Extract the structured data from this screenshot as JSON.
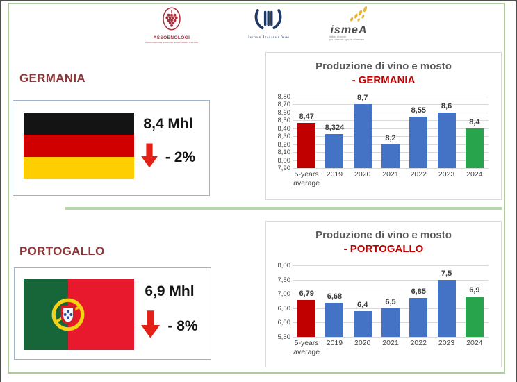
{
  "page": {
    "frame_color": "#aecb9e",
    "divider_color": "#b6d7a8",
    "background": "#ffffff"
  },
  "header": {
    "logos": [
      {
        "id": "assoenologi",
        "name": "ASSOENOLOGI",
        "tagline": "ASSOCIAZIONE ENOLOGI ENOTECNICI ITALIANI"
      },
      {
        "id": "unione-italiana-vini",
        "name": "Unione Italiana Vini"
      },
      {
        "id": "ismea",
        "name": "ismeA",
        "tagline_line1": "Istituto di servizi",
        "tagline_line2": "per il mercato agricolo alimentare"
      }
    ]
  },
  "sections": [
    {
      "id": "germania",
      "title": "GERMANIA",
      "value": "8,4 Mhl",
      "change": "- 2%",
      "flag": "germany"
    },
    {
      "id": "portogallo",
      "title": "PORTOGALLO",
      "value": "6,9 Mhl",
      "change": "- 8%",
      "flag": "portugal"
    }
  ],
  "colors": {
    "bar_blue": "#4472c4",
    "bar_red": "#c00000",
    "bar_green": "#28a44c",
    "country_title_maroon": "#8e3639",
    "chart_title_gray": "#595959",
    "chart_subtitle_red": "#c00000",
    "arrow_red": "#e32119",
    "flag_box_border": "#9fb2c9"
  },
  "chart_data": [
    {
      "type": "bar",
      "title": "Produzione di vino e mosto",
      "subtitle": "- GERMANIA",
      "categories": [
        "5-years\naverage",
        "2019",
        "2020",
        "2021",
        "2022",
        "2023",
        "2024"
      ],
      "values": [
        8.47,
        8.324,
        8.7,
        8.2,
        8.55,
        8.6,
        8.4
      ],
      "labels": [
        "8,47",
        "8,324",
        "8,7",
        "8,2",
        "8,55",
        "8,6",
        "8,4"
      ],
      "bar_colors": [
        "#c00000",
        "#4472c4",
        "#4472c4",
        "#4472c4",
        "#4472c4",
        "#4472c4",
        "#28a44c"
      ],
      "ylim": [
        7.9,
        8.8
      ],
      "yticks": [
        "8,80",
        "8,70",
        "8,60",
        "8,50",
        "8,40",
        "8,30",
        "8,20",
        "8,10",
        "8,00",
        "7,90"
      ],
      "xlabel": "",
      "ylabel": "",
      "grid": true,
      "legend": "none"
    },
    {
      "type": "bar",
      "title": "Produzione di vino e mosto",
      "subtitle": "- PORTOGALLO",
      "categories": [
        "5-years\naverage",
        "2019",
        "2020",
        "2021",
        "2022",
        "2023",
        "2024"
      ],
      "values": [
        6.79,
        6.68,
        6.4,
        6.5,
        6.85,
        7.5,
        6.9
      ],
      "labels": [
        "6,79",
        "6,68",
        "6,4",
        "6,5",
        "6,85",
        "7,5",
        "6,9"
      ],
      "bar_colors": [
        "#c00000",
        "#4472c4",
        "#4472c4",
        "#4472c4",
        "#4472c4",
        "#4472c4",
        "#28a44c"
      ],
      "ylim": [
        5.5,
        8.0
      ],
      "yticks": [
        "8,00",
        "7,50",
        "7,00",
        "6,50",
        "6,00",
        "5,50"
      ],
      "xlabel": "",
      "ylabel": "",
      "grid": true,
      "legend": "none"
    }
  ]
}
